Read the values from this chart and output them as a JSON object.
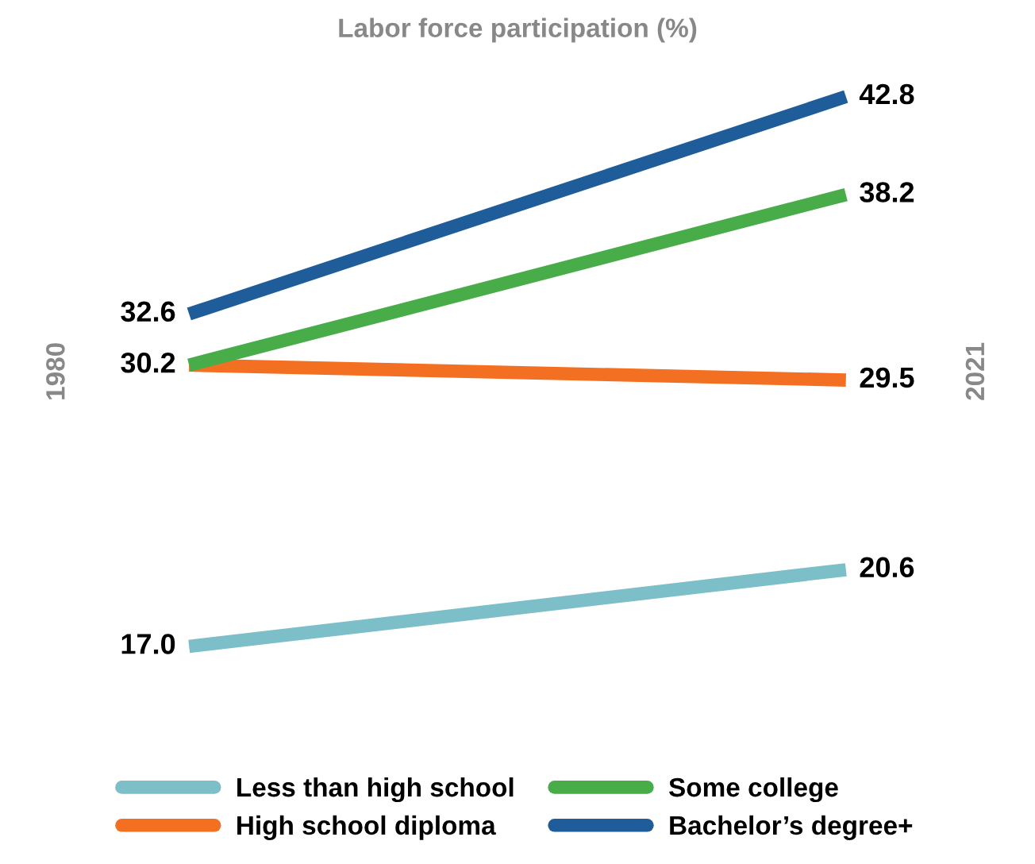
{
  "chart_data": {
    "type": "line",
    "title": "Labor force participation (%)",
    "categories": [
      null,
      null
    ],
    "annotations": [
      "1980",
      "2021"
    ],
    "series": [
      {
        "name": "Less than high school",
        "color": "#7dbfc9",
        "values": [
          17.0,
          20.6
        ],
        "value_labels": [
          "17.0",
          "20.6"
        ]
      },
      {
        "name": "High school diploma",
        "color": "#f36f21",
        "values": [
          30.2,
          29.5
        ],
        "value_labels": [
          null,
          "29.5"
        ]
      },
      {
        "name": "Some college",
        "color": "#48ad48",
        "values": [
          30.2,
          38.2
        ],
        "value_labels": [
          "30.2",
          "38.2"
        ]
      },
      {
        "name": "Bachelor’s degree+",
        "color": "#1f5c9a",
        "values": [
          32.6,
          42.8
        ],
        "value_labels": [
          "32.6",
          "42.8"
        ]
      }
    ],
    "legend": "bottom",
    "marker": "none",
    "line_style": "solid"
  }
}
